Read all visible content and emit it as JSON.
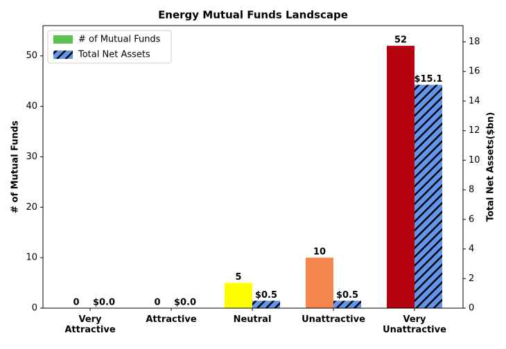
{
  "chart_data": {
    "type": "bar",
    "title": "Energy Mutual Funds Landscape",
    "categories": [
      "Very\nAttractive",
      "Attractive",
      "Neutral",
      "Unattractive",
      "Very\nUnattractive"
    ],
    "ylabel": "# of Mutual Funds",
    "y2label": "Total Net Assets($bn)",
    "ylim": [
      0,
      56
    ],
    "yticks": [
      0,
      10,
      20,
      30,
      40,
      50
    ],
    "y2lim": [
      0,
      19.1
    ],
    "y2ticks": [
      0,
      2,
      4,
      6,
      8,
      10,
      12,
      14,
      16,
      18
    ],
    "legend": "upper left",
    "series": [
      {
        "name": "# of Mutual Funds",
        "color": "#5dc14f",
        "colors": [
          "#1a9641",
          "#a6d96a",
          "#ffff00",
          "#f7864e",
          "#b5000f"
        ],
        "values": [
          0,
          0,
          5,
          10,
          52
        ]
      },
      {
        "name": "Total Net Assets",
        "color": "#6495ed",
        "axis": "y2",
        "hatch": "////",
        "values": [
          0.0,
          0.0,
          0.5,
          0.5,
          15.1
        ],
        "value_labels": [
          "$0.0",
          "$0.0",
          "$0.5",
          "$0.5",
          "$15.1"
        ]
      }
    ]
  }
}
